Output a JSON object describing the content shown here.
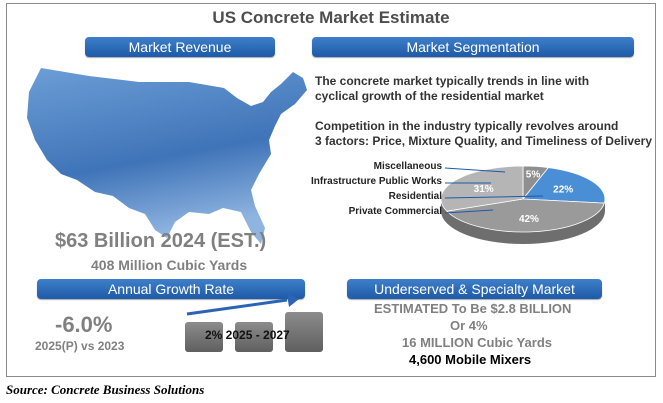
{
  "title": "US Concrete Market Estimate",
  "headers": {
    "revenue": "Market Revenue",
    "segmentation": "Market Segmentation",
    "growth": "Annual Growth Rate",
    "underserved": "Underserved & Specialty Market"
  },
  "segmentation_text": {
    "line1": "The concrete market typically trends in line with",
    "line2": "cyclical growth of the residential market",
    "line3": "Competition in the industry typically revolves around",
    "line4": "3 factors: Price, Mixture Quality, and Timeliness of Delivery"
  },
  "revenue": {
    "value": "$63 Billion 2024 (EST.)",
    "volume": "408 Million Cubic Yards"
  },
  "growth": {
    "rate": "-6.0%",
    "comparison": "2025(P) vs 2023",
    "forecast": "2% 2025 - 2027"
  },
  "underserved": {
    "line1": "ESTIMATED To Be $2.8 BILLION",
    "line2": "Or 4%",
    "line3": "16 MILLION Cubic Yards",
    "line4": "4,600 Mobile Mixers"
  },
  "source": "Source: Concrete Business Solutions",
  "chart_data": {
    "type": "pie",
    "categories": [
      "Miscellaneous",
      "Infrastructure Public Works",
      "Residential",
      "Private Commercial"
    ],
    "values": [
      5,
      22,
      42,
      31
    ],
    "labels": [
      "5%",
      "22%",
      "42%",
      "31%"
    ],
    "colors": [
      "#8f8f8f",
      "#4a8fd6",
      "#9a9a9a",
      "#b5b5b5"
    ]
  },
  "colors": {
    "accent": "#1d5aa8",
    "map": "#4f86c6",
    "text_gray": "#808080"
  }
}
